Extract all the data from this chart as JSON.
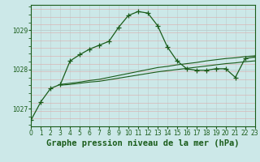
{
  "title": "Graphe pression niveau de la mer (hPa)",
  "background_color": "#cce8e8",
  "grid_color": "#aacccc",
  "grid_color_minor": "#bbdddd",
  "line_color": "#1a5c1a",
  "xlim": [
    0,
    23
  ],
  "ylim": [
    1026.55,
    1029.65
  ],
  "yticks": [
    1027,
    1028,
    1029
  ],
  "xticks": [
    0,
    1,
    2,
    3,
    4,
    5,
    6,
    7,
    8,
    9,
    10,
    11,
    12,
    13,
    14,
    15,
    16,
    17,
    18,
    19,
    20,
    21,
    22,
    23
  ],
  "series1_x": [
    0,
    1,
    2,
    3,
    4,
    5,
    6,
    7,
    8,
    9,
    10,
    11,
    12,
    13,
    14,
    15,
    16,
    17,
    18,
    19,
    20,
    21,
    22,
    23
  ],
  "series1_y": [
    1026.72,
    1027.18,
    1027.52,
    1027.62,
    1028.22,
    1028.38,
    1028.52,
    1028.62,
    1028.72,
    1029.08,
    1029.38,
    1029.48,
    1029.44,
    1029.12,
    1028.58,
    1028.22,
    1028.02,
    1027.98,
    1027.98,
    1028.02,
    1028.02,
    1027.8,
    1028.28,
    1028.32
  ],
  "series2_x": [
    3,
    4,
    5,
    6,
    7,
    8,
    9,
    10,
    11,
    12,
    13,
    14,
    15,
    16,
    17,
    18,
    19,
    20,
    21,
    22,
    23
  ],
  "series2_y": [
    1027.62,
    1027.65,
    1027.68,
    1027.72,
    1027.75,
    1027.8,
    1027.85,
    1027.9,
    1027.95,
    1028.0,
    1028.05,
    1028.08,
    1028.12,
    1028.15,
    1028.18,
    1028.22,
    1028.25,
    1028.28,
    1028.3,
    1028.33,
    1028.35
  ],
  "series3_x": [
    3,
    4,
    5,
    6,
    7,
    8,
    9,
    10,
    11,
    12,
    13,
    14,
    15,
    16,
    17,
    18,
    19,
    20,
    21,
    22,
    23
  ],
  "series3_y": [
    1027.6,
    1027.62,
    1027.65,
    1027.68,
    1027.7,
    1027.74,
    1027.78,
    1027.82,
    1027.86,
    1027.9,
    1027.94,
    1027.97,
    1028.0,
    1028.03,
    1028.06,
    1028.09,
    1028.12,
    1028.15,
    1028.17,
    1028.2,
    1028.22
  ],
  "title_fontsize": 7.5,
  "tick_fontsize": 5.5
}
